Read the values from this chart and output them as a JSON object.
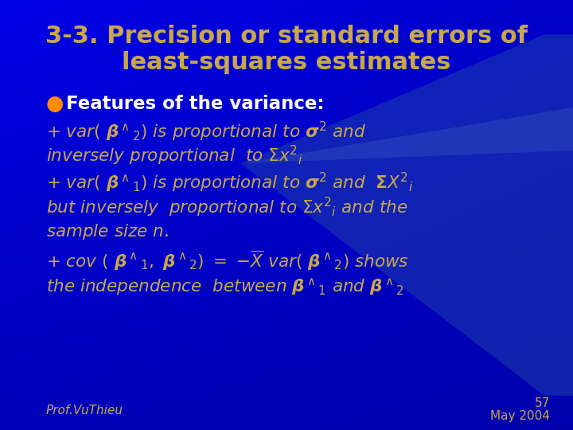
{
  "title_line1": "3-3. Precision or standard errors of",
  "title_line2": "least-squares estimates",
  "title_color": "#C8A84B",
  "bullet_color": "#FF8C00",
  "text_color": "#C8A84B",
  "footer_left": "Prof.VuThieu",
  "footer_right_line1": "57",
  "footer_right_line2": "May 2004",
  "title_fontsize": 22,
  "body_fontsize": 15.5,
  "footer_fontsize": 11
}
